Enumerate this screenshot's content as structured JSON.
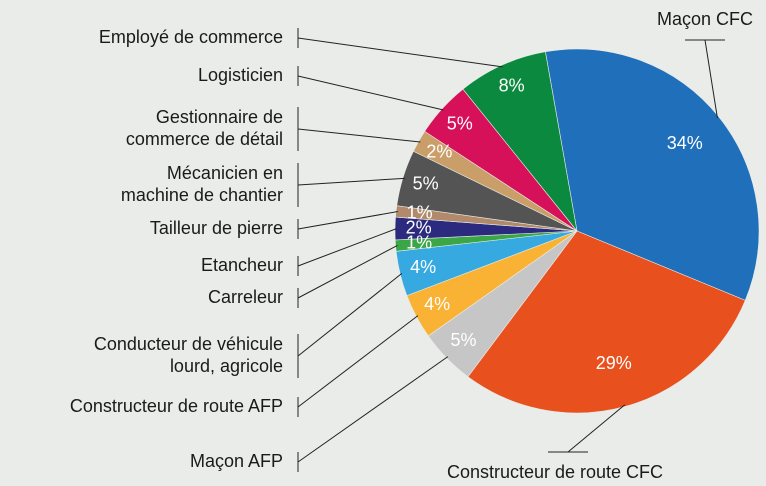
{
  "chart_data": {
    "type": "pie",
    "categories": [
      "Maçon CFC",
      "Constructeur de route CFC",
      "Maçon AFP",
      "Constructeur de route AFP",
      "Conducteur de véhicule\nlourd, agricole",
      "Carreleur",
      "Etancheur",
      "Tailleur de pierre",
      "Mécanicien en\nmachine de chantier",
      "Gestionnaire de\ncommerce de détail",
      "Logisticien",
      "Employé de commerce"
    ],
    "values": [
      34,
      29,
      5,
      4,
      4,
      1,
      2,
      1,
      5,
      2,
      5,
      8
    ],
    "value_labels": [
      "34%",
      "29%",
      "5%",
      "4%",
      "4%",
      "1%",
      "2%",
      "1%",
      "5%",
      "2%",
      "5%",
      "8%"
    ],
    "colors": [
      "#1f6fba",
      "#e8501e",
      "#c6c6c6",
      "#f9b233",
      "#36a9e1",
      "#3aa645",
      "#2b2a7e",
      "#b08a6a",
      "#545454",
      "#c99e68",
      "#d6115a",
      "#0b8a3f"
    ]
  }
}
